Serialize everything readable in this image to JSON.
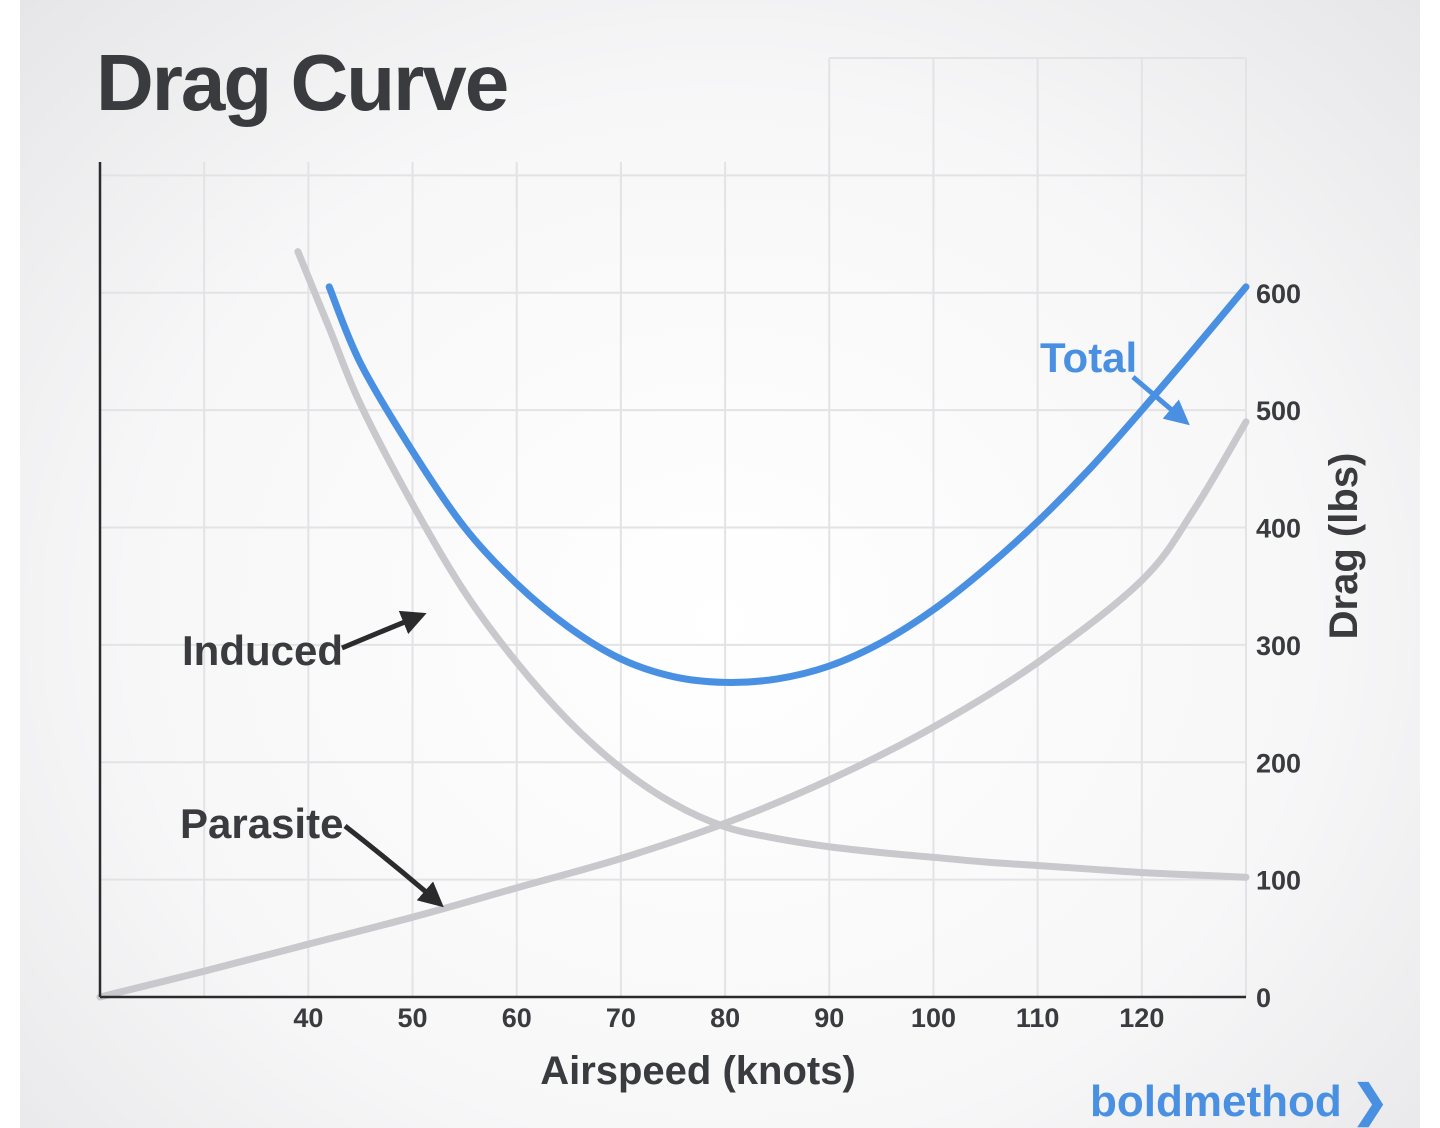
{
  "chart_data": {
    "type": "line",
    "title": "Drag Curve",
    "xlabel": "Airspeed (knots)",
    "ylabel": "Drag (lbs)",
    "x_ticks": [
      40,
      50,
      60,
      70,
      80,
      90,
      100,
      110,
      120
    ],
    "y_ticks": [
      0,
      100,
      200,
      300,
      400,
      500,
      600
    ],
    "xlim": [
      20,
      130
    ],
    "ylim": [
      0,
      800
    ],
    "grid": true,
    "y_axis_side": "right",
    "series": [
      {
        "name": "Total",
        "color": "#4a90e2",
        "x": [
          42,
          45,
          50,
          55,
          60,
          65,
          70,
          75,
          80,
          85,
          90,
          95,
          100,
          105,
          110,
          115,
          120,
          125,
          130
        ],
        "y": [
          605,
          540,
          465,
          400,
          352,
          315,
          288,
          273,
          268,
          271,
          282,
          302,
          330,
          365,
          405,
          450,
          500,
          552,
          605
        ]
      },
      {
        "name": "Induced",
        "color": "#c9c9cd",
        "x": [
          39,
          42,
          45,
          50,
          55,
          60,
          65,
          70,
          75,
          80,
          85,
          90,
          95,
          100,
          105,
          110,
          115,
          120,
          125,
          130
        ],
        "y": [
          635,
          570,
          505,
          420,
          345,
          285,
          235,
          195,
          165,
          145,
          135,
          128,
          123,
          119,
          115,
          112,
          109,
          106,
          104,
          102
        ]
      },
      {
        "name": "Parasite",
        "color": "#c9c9cd",
        "x": [
          20,
          30,
          40,
          50,
          60,
          70,
          80,
          90,
          100,
          110,
          120,
          125,
          130
        ],
        "y": [
          0,
          22,
          45,
          68,
          93,
          118,
          148,
          185,
          230,
          285,
          355,
          415,
          490
        ]
      }
    ]
  },
  "brand": {
    "text": "boldmethod",
    "chevron": "❯",
    "color": "#4a90e2"
  },
  "colors": {
    "text": "#3a3b3f",
    "grid": "#e3e3e6",
    "axis": "#2b2b2e",
    "arrow_dark": "#2b2b2e",
    "arrow_blue": "#4a90e2"
  }
}
